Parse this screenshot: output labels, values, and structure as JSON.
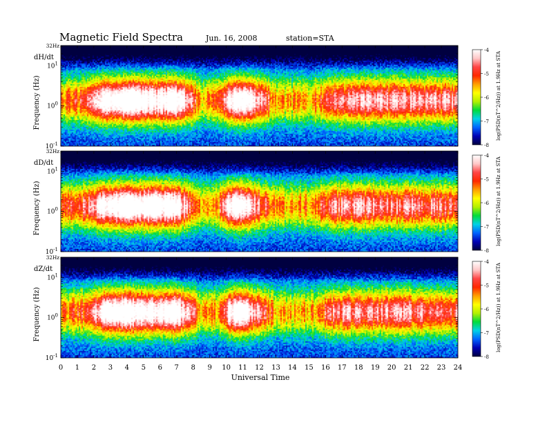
{
  "header": {
    "title": "Magnetic Field Spectra",
    "date": "Jun. 16, 2008",
    "station": "station=STA"
  },
  "chart_data": {
    "type": "heatmap",
    "xlabel": "Universal Time",
    "x_ticks": [
      "0",
      "1",
      "2",
      "3",
      "4",
      "5",
      "6",
      "7",
      "8",
      "9",
      "10",
      "11",
      "12",
      "13",
      "14",
      "15",
      "16",
      "17",
      "18",
      "19",
      "20",
      "21",
      "22",
      "23",
      "24"
    ],
    "xlim": [
      0,
      24
    ],
    "y_scale": "log",
    "ylim_hz": [
      0.1,
      32
    ],
    "y_ticks": [
      {
        "value": 0.1,
        "base": "10",
        "exp": "-1"
      },
      {
        "value": 1,
        "base": "10",
        "exp": "0"
      },
      {
        "value": 10,
        "base": "10",
        "exp": "1"
      }
    ],
    "y_top_label": "32Hz",
    "colorbar": {
      "label": "log(PSD(nT^2/Hz)) at 1.9Hz at STA",
      "range": [
        -8,
        -4
      ],
      "ticks": [
        "-4",
        "-5",
        "-6",
        "-7",
        "-8"
      ],
      "colors": [
        "#000040",
        "#0000b4",
        "#0064ff",
        "#00d2e6",
        "#00dc3c",
        "#b4f000",
        "#ffff00",
        "#ffa000",
        "#ff2800",
        "#ff4646",
        "#ffc8c8",
        "#ffffff"
      ]
    },
    "panels": [
      {
        "component": "dH/dt",
        "ylabel": "Frequency (Hz)",
        "intensity_profile": [
          {
            "t": 0.0,
            "level": 0.5
          },
          {
            "t": 1.5,
            "level": 0.6
          },
          {
            "t": 2.5,
            "level": 0.9
          },
          {
            "t": 4.0,
            "level": 1.0
          },
          {
            "t": 6.0,
            "level": 0.9
          },
          {
            "t": 6.9,
            "level": 1.0
          },
          {
            "t": 7.5,
            "level": 0.8
          },
          {
            "t": 8.5,
            "level": 0.45
          },
          {
            "t": 9.5,
            "level": 0.55
          },
          {
            "t": 10.5,
            "level": 1.0
          },
          {
            "t": 12.0,
            "level": 0.8
          },
          {
            "t": 13.0,
            "level": 0.45
          },
          {
            "t": 15.0,
            "level": 0.45
          },
          {
            "t": 16.5,
            "level": 0.72
          },
          {
            "t": 20.0,
            "level": 0.74
          },
          {
            "t": 24.0,
            "level": 0.7
          }
        ]
      },
      {
        "component": "dD/dt",
        "ylabel": "Frequency (Hz)",
        "intensity_profile": [
          {
            "t": 0.0,
            "level": 0.55
          },
          {
            "t": 1.5,
            "level": 0.65
          },
          {
            "t": 2.5,
            "level": 0.9
          },
          {
            "t": 4.0,
            "level": 1.0
          },
          {
            "t": 6.0,
            "level": 0.95
          },
          {
            "t": 6.9,
            "level": 1.0
          },
          {
            "t": 7.5,
            "level": 0.75
          },
          {
            "t": 8.5,
            "level": 0.45
          },
          {
            "t": 9.5,
            "level": 0.55
          },
          {
            "t": 10.5,
            "level": 1.0
          },
          {
            "t": 12.0,
            "level": 0.7
          },
          {
            "t": 13.0,
            "level": 0.48
          },
          {
            "t": 15.0,
            "level": 0.5
          },
          {
            "t": 16.5,
            "level": 0.7
          },
          {
            "t": 20.0,
            "level": 0.7
          },
          {
            "t": 24.0,
            "level": 0.65
          }
        ]
      },
      {
        "component": "dZ/dt",
        "ylabel": "Frequency (Hz)",
        "intensity_profile": [
          {
            "t": 0.0,
            "level": 0.5
          },
          {
            "t": 1.5,
            "level": 0.6
          },
          {
            "t": 2.5,
            "level": 0.9
          },
          {
            "t": 4.0,
            "level": 1.0
          },
          {
            "t": 6.0,
            "level": 0.9
          },
          {
            "t": 6.9,
            "level": 1.0
          },
          {
            "t": 7.5,
            "level": 0.8
          },
          {
            "t": 8.5,
            "level": 0.45
          },
          {
            "t": 9.5,
            "level": 0.5
          },
          {
            "t": 10.5,
            "level": 1.0
          },
          {
            "t": 12.0,
            "level": 0.7
          },
          {
            "t": 13.0,
            "level": 0.45
          },
          {
            "t": 15.0,
            "level": 0.45
          },
          {
            "t": 16.5,
            "level": 0.7
          },
          {
            "t": 20.0,
            "level": 0.7
          },
          {
            "t": 24.0,
            "level": 0.68
          }
        ]
      }
    ]
  }
}
